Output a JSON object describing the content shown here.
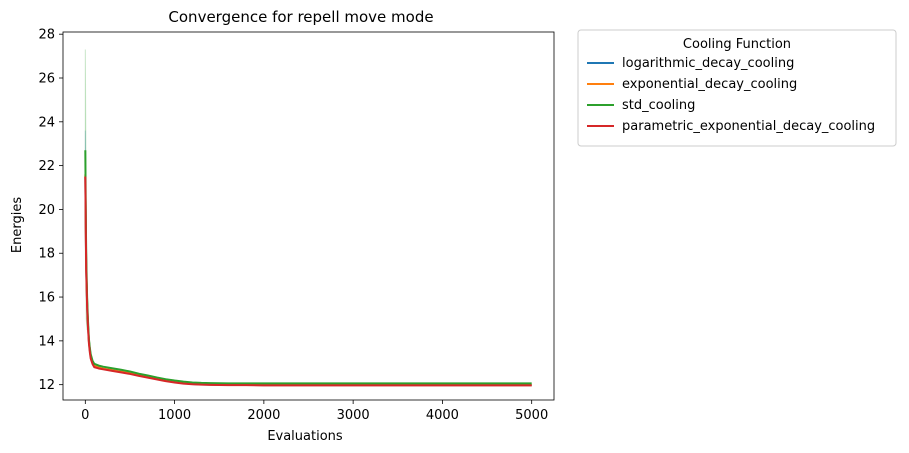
{
  "chart_data": {
    "type": "line",
    "title": "Convergence for repell move mode",
    "xlabel": "Evaluations",
    "ylabel": "Energies",
    "xlim": [
      -250,
      5250
    ],
    "ylim": [
      11.3,
      28.1
    ],
    "xticks": [
      0,
      1000,
      2000,
      3000,
      4000,
      5000
    ],
    "yticks": [
      12,
      14,
      16,
      18,
      20,
      22,
      24,
      26,
      28
    ],
    "grid": false,
    "legend": {
      "title": "Cooling Function",
      "placement": "outside-upper-right"
    },
    "series": [
      {
        "name": "logarithmic_decay_cooling",
        "color": "#1f77b4",
        "x": [
          0,
          5,
          10,
          20,
          30,
          40,
          50,
          60,
          80,
          100,
          150,
          200,
          300,
          400,
          500,
          600,
          700,
          800,
          900,
          1000,
          1100,
          1200,
          1300,
          1400,
          1600,
          1800,
          2000,
          2500,
          3000,
          3500,
          4000,
          4500,
          5000
        ],
        "y": [
          21.5,
          19.2,
          17.3,
          15.7,
          14.7,
          14.0,
          13.6,
          13.3,
          13.0,
          12.85,
          12.78,
          12.73,
          12.66,
          12.59,
          12.52,
          12.43,
          12.35,
          12.27,
          12.19,
          12.12,
          12.07,
          12.03,
          12.01,
          12.0,
          11.99,
          11.99,
          11.98,
          11.98,
          11.98,
          11.98,
          11.98,
          11.98,
          11.98
        ]
      },
      {
        "name": "exponential_decay_cooling",
        "color": "#ff7f0e",
        "x": [
          0,
          5,
          10,
          20,
          30,
          40,
          50,
          60,
          80,
          100,
          150,
          200,
          300,
          400,
          500,
          600,
          700,
          800,
          900,
          1000,
          1100,
          1200,
          1300,
          1400,
          1600,
          1800,
          2000,
          2500,
          3000,
          3500,
          4000,
          4500,
          5000
        ],
        "y": [
          21.6,
          19.3,
          17.4,
          15.8,
          14.7,
          14.0,
          13.6,
          13.3,
          13.0,
          12.86,
          12.78,
          12.73,
          12.66,
          12.59,
          12.52,
          12.43,
          12.35,
          12.27,
          12.19,
          12.13,
          12.08,
          12.04,
          12.02,
          12.0,
          11.99,
          11.99,
          11.98,
          11.98,
          11.98,
          11.98,
          11.98,
          11.98,
          11.98
        ]
      },
      {
        "name": "std_cooling",
        "color": "#2ca02c",
        "x": [
          0,
          5,
          10,
          20,
          30,
          40,
          50,
          60,
          80,
          100,
          150,
          200,
          300,
          400,
          500,
          600,
          700,
          800,
          900,
          1000,
          1100,
          1200,
          1300,
          1400,
          1600,
          1800,
          2000,
          2500,
          3000,
          3500,
          4000,
          4500,
          5000
        ],
        "y": [
          22.7,
          20.0,
          17.8,
          16.0,
          14.9,
          14.1,
          13.7,
          13.4,
          13.1,
          12.95,
          12.87,
          12.82,
          12.75,
          12.68,
          12.6,
          12.5,
          12.42,
          12.33,
          12.25,
          12.19,
          12.14,
          12.1,
          12.08,
          12.07,
          12.06,
          12.06,
          12.06,
          12.06,
          12.06,
          12.06,
          12.06,
          12.06,
          12.06
        ]
      },
      {
        "name": "parametric_exponential_decay_cooling",
        "color": "#d62728",
        "x": [
          0,
          5,
          10,
          20,
          30,
          40,
          50,
          60,
          80,
          100,
          150,
          200,
          300,
          400,
          500,
          600,
          700,
          800,
          900,
          1000,
          1100,
          1200,
          1300,
          1400,
          1600,
          1800,
          2000,
          2500,
          3000,
          3500,
          4000,
          4500,
          5000
        ],
        "y": [
          21.5,
          19.1,
          17.2,
          15.6,
          14.6,
          13.9,
          13.5,
          13.2,
          12.95,
          12.8,
          12.74,
          12.7,
          12.63,
          12.56,
          12.49,
          12.4,
          12.32,
          12.24,
          12.16,
          12.1,
          12.05,
          12.02,
          12.0,
          11.99,
          11.98,
          11.98,
          11.97,
          11.97,
          11.97,
          11.97,
          11.97,
          11.97,
          11.97
        ]
      }
    ],
    "uncertainty_bands": [
      {
        "series": "std_cooling",
        "x": [
          0,
          5,
          10,
          20
        ],
        "low": [
          18.0,
          17.0,
          15.0,
          14.5
        ],
        "high": [
          27.3,
          23.6,
          19.5,
          17.0
        ]
      },
      {
        "series": "logarithmic_decay_cooling",
        "x": [
          0,
          5,
          10,
          20
        ],
        "low": [
          19.5,
          18.0,
          16.5,
          15.0
        ],
        "high": [
          23.6,
          21.0,
          18.5,
          16.5
        ]
      }
    ]
  }
}
